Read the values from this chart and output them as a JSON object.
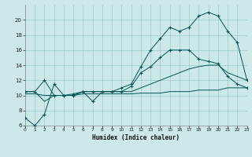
{
  "xlabel": "Humidex (Indice chaleur)",
  "bg_color": "#cce8e8",
  "grid_color": "#99cccc",
  "line_color": "#005555",
  "xlim": [
    0,
    23
  ],
  "ylim": [
    6,
    22
  ],
  "xticks": [
    0,
    1,
    2,
    3,
    4,
    5,
    6,
    7,
    8,
    9,
    10,
    11,
    12,
    13,
    14,
    15,
    16,
    17,
    18,
    19,
    20,
    21,
    22,
    23
  ],
  "yticks": [
    6,
    8,
    10,
    12,
    14,
    16,
    18,
    20
  ],
  "hours": [
    0,
    1,
    2,
    3,
    4,
    5,
    6,
    7,
    8,
    9,
    10,
    11,
    12,
    13,
    14,
    15,
    16,
    17,
    18,
    19,
    20,
    21,
    22,
    23
  ],
  "main_line": [
    7.0,
    6.0,
    7.5,
    11.5,
    10.0,
    10.0,
    10.5,
    9.2,
    10.5,
    10.5,
    11.0,
    11.5,
    13.8,
    16.0,
    17.5,
    19.0,
    18.5,
    19.0,
    20.5,
    21.0,
    20.5,
    18.5,
    17.0,
    12.0
  ],
  "upper_line": [
    10.5,
    10.5,
    12.0,
    10.0,
    10.0,
    10.2,
    10.5,
    10.5,
    10.5,
    10.5,
    10.5,
    11.2,
    13.0,
    13.8,
    15.0,
    16.0,
    16.0,
    16.0,
    14.8,
    14.5,
    14.2,
    12.5,
    11.5,
    11.0
  ],
  "mid_line": [
    10.5,
    10.5,
    9.2,
    10.0,
    10.0,
    10.0,
    10.5,
    10.5,
    10.5,
    10.5,
    10.5,
    10.5,
    11.0,
    11.5,
    12.0,
    12.5,
    13.0,
    13.5,
    13.8,
    14.0,
    14.0,
    13.0,
    12.5,
    12.0
  ],
  "lower_line": [
    10.2,
    10.2,
    10.0,
    10.0,
    10.0,
    10.0,
    10.2,
    10.2,
    10.2,
    10.2,
    10.2,
    10.2,
    10.3,
    10.3,
    10.3,
    10.5,
    10.5,
    10.5,
    10.7,
    10.7,
    10.7,
    11.0,
    11.0,
    11.0
  ]
}
